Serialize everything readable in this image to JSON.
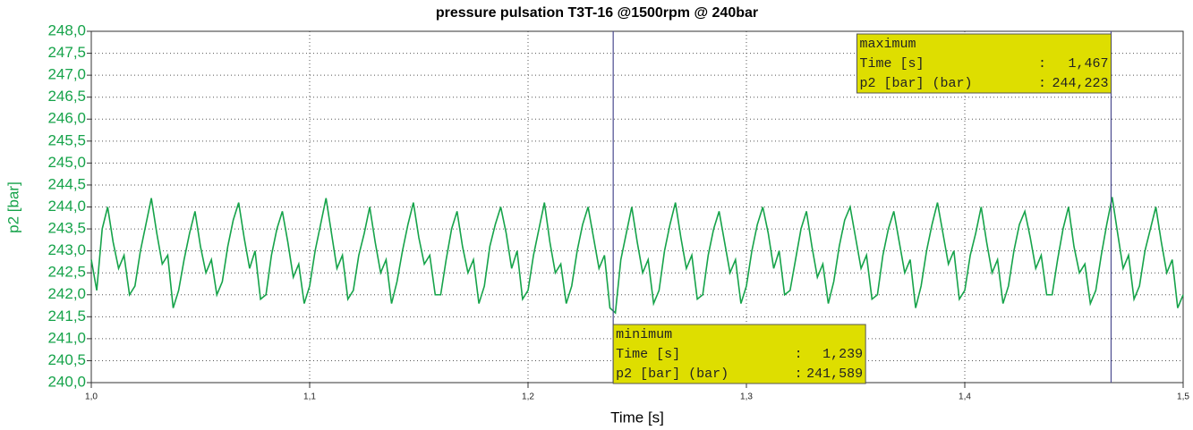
{
  "chart_data": {
    "type": "line",
    "title": "pressure pulsation T3T-16 @1500rpm @ 240bar",
    "x_label": "Time [s]",
    "y_label": "p2 [bar]",
    "grid": true,
    "xlim": [
      1,
      1.5
    ],
    "ylim": [
      240,
      248
    ],
    "xticks": [
      {
        "value": 1,
        "label": "1,0"
      },
      {
        "value": 1.1,
        "label": "1,1"
      },
      {
        "value": 1.2,
        "label": "1,2"
      },
      {
        "value": 1.3,
        "label": "1,3"
      },
      {
        "value": 1.4,
        "label": "1,4"
      },
      {
        "value": 1.5,
        "label": "1,5"
      }
    ],
    "yticks": [
      {
        "value": 240,
        "label": "240,0"
      },
      {
        "value": 240.5,
        "label": "240,5"
      },
      {
        "value": 241,
        "label": "241,0"
      },
      {
        "value": 241.5,
        "label": "241,5"
      },
      {
        "value": 242,
        "label": "242,0"
      },
      {
        "value": 242.5,
        "label": "242,5"
      },
      {
        "value": 243,
        "label": "243,0"
      },
      {
        "value": 243.5,
        "label": "243,5"
      },
      {
        "value": 244,
        "label": "244,0"
      },
      {
        "value": 244.5,
        "label": "244,5"
      },
      {
        "value": 245,
        "label": "245,0"
      },
      {
        "value": 245.5,
        "label": "245,5"
      },
      {
        "value": 246,
        "label": "246,0"
      },
      {
        "value": 246.5,
        "label": "246,5"
      },
      {
        "value": 247,
        "label": "247,0"
      },
      {
        "value": 247.5,
        "label": "247,5"
      },
      {
        "value": 248,
        "label": "248,0"
      }
    ],
    "x": [
      1,
      1.0025,
      1.005,
      1.0075,
      1.01,
      1.0125,
      1.015,
      1.0175,
      1.02,
      1.0225,
      1.025,
      1.0275,
      1.03,
      1.0325,
      1.035,
      1.0375,
      1.04,
      1.0425,
      1.045,
      1.0475,
      1.05,
      1.0525,
      1.055,
      1.0575,
      1.06,
      1.0625,
      1.065,
      1.0675,
      1.07,
      1.0725,
      1.075,
      1.0775,
      1.08,
      1.0825,
      1.085,
      1.0875,
      1.09,
      1.0925,
      1.095,
      1.0975,
      1.1,
      1.1025,
      1.105,
      1.1075,
      1.11,
      1.1125,
      1.115,
      1.1175,
      1.12,
      1.1225,
      1.125,
      1.1275,
      1.13,
      1.1325,
      1.135,
      1.1375,
      1.14,
      1.1425,
      1.145,
      1.1475,
      1.15,
      1.1525,
      1.155,
      1.1575,
      1.16,
      1.1625,
      1.165,
      1.1675,
      1.17,
      1.1725,
      1.175,
      1.1775,
      1.18,
      1.1825,
      1.185,
      1.1875,
      1.19,
      1.1925,
      1.195,
      1.1975,
      1.2,
      1.2025,
      1.205,
      1.2075,
      1.21,
      1.2125,
      1.215,
      1.2175,
      1.22,
      1.2225,
      1.225,
      1.2275,
      1.23,
      1.2325,
      1.235,
      1.2375,
      1.24,
      1.2425,
      1.245,
      1.2475,
      1.25,
      1.2525,
      1.255,
      1.2575,
      1.26,
      1.2625,
      1.265,
      1.2675,
      1.27,
      1.2725,
      1.275,
      1.2775,
      1.28,
      1.2825,
      1.285,
      1.2875,
      1.29,
      1.2925,
      1.295,
      1.2975,
      1.3,
      1.3025,
      1.305,
      1.3075,
      1.31,
      1.3125,
      1.315,
      1.3175,
      1.32,
      1.3225,
      1.325,
      1.3275,
      1.33,
      1.3325,
      1.335,
      1.3375,
      1.34,
      1.3425,
      1.345,
      1.3475,
      1.35,
      1.3525,
      1.355,
      1.3575,
      1.36,
      1.3625,
      1.365,
      1.3675,
      1.37,
      1.3725,
      1.375,
      1.3775,
      1.38,
      1.3825,
      1.385,
      1.3875,
      1.39,
      1.3925,
      1.395,
      1.3975,
      1.4,
      1.4025,
      1.405,
      1.4075,
      1.41,
      1.4125,
      1.415,
      1.4175,
      1.42,
      1.4225,
      1.425,
      1.4275,
      1.43,
      1.4325,
      1.435,
      1.4375,
      1.44,
      1.4425,
      1.445,
      1.4475,
      1.45,
      1.4525,
      1.455,
      1.4575,
      1.46,
      1.4625,
      1.465,
      1.4675,
      1.47,
      1.4725,
      1.475,
      1.4775,
      1.48,
      1.4825,
      1.485,
      1.4875,
      1.49,
      1.4925,
      1.495,
      1.4975,
      1.5
    ],
    "series": [
      {
        "name": "p2 [bar]",
        "color": "#16a34a",
        "values": [
          242.8,
          242.1,
          243.5,
          244.0,
          243.2,
          242.6,
          242.9,
          242.0,
          242.2,
          243.0,
          243.6,
          244.2,
          243.4,
          242.7,
          242.9,
          241.7,
          242.1,
          242.8,
          243.4,
          243.9,
          243.1,
          242.5,
          242.8,
          242.0,
          242.3,
          243.1,
          243.7,
          244.1,
          243.3,
          242.6,
          243.0,
          241.9,
          242.0,
          242.9,
          243.5,
          243.9,
          243.2,
          242.4,
          242.7,
          241.8,
          242.2,
          243.0,
          243.6,
          244.2,
          243.4,
          242.6,
          242.9,
          241.9,
          242.1,
          242.9,
          243.4,
          244.0,
          243.2,
          242.5,
          242.8,
          241.8,
          242.3,
          243.0,
          243.6,
          244.1,
          243.3,
          242.7,
          242.9,
          242.0,
          242.0,
          242.8,
          243.5,
          243.9,
          243.1,
          242.5,
          242.8,
          241.8,
          242.2,
          243.1,
          243.6,
          244.0,
          243.4,
          242.6,
          243.0,
          241.9,
          242.1,
          242.9,
          243.5,
          244.1,
          243.2,
          242.5,
          242.7,
          241.8,
          242.2,
          243.0,
          243.6,
          244.0,
          243.3,
          242.6,
          242.9,
          241.7,
          241.589,
          242.8,
          243.4,
          244.0,
          243.2,
          242.5,
          242.8,
          241.8,
          242.1,
          243.0,
          243.6,
          244.1,
          243.3,
          242.6,
          242.9,
          241.9,
          242.0,
          242.9,
          243.5,
          243.9,
          243.2,
          242.5,
          242.8,
          241.8,
          242.2,
          243.0,
          243.6,
          244.0,
          243.4,
          242.6,
          243.0,
          242.0,
          242.1,
          242.8,
          243.5,
          243.9,
          243.1,
          242.4,
          242.7,
          241.8,
          242.3,
          243.1,
          243.7,
          244.0,
          243.3,
          242.6,
          242.9,
          241.9,
          242.0,
          242.9,
          243.5,
          243.9,
          243.2,
          242.5,
          242.8,
          241.7,
          242.2,
          243.0,
          243.6,
          244.1,
          243.4,
          242.7,
          243.0,
          241.9,
          242.1,
          242.9,
          243.4,
          244.0,
          243.2,
          242.5,
          242.8,
          241.8,
          242.2,
          243.0,
          243.6,
          243.9,
          243.3,
          242.6,
          242.9,
          242.0,
          242.0,
          242.8,
          243.5,
          244.0,
          243.1,
          242.5,
          242.7,
          241.8,
          242.1,
          242.9,
          243.6,
          244.223,
          243.4,
          242.6,
          242.9,
          241.9,
          242.2,
          243.0,
          243.5,
          244.0,
          243.2,
          242.5,
          242.8,
          241.7,
          242.0
        ]
      }
    ],
    "annotations": [
      {
        "title": "maximum",
        "separator": ":",
        "rows": [
          {
            "name": "Time [s]",
            "value": {
              "value": 1.467,
              "label": "1,467"
            }
          },
          {
            "name": "p2 [bar] (bar)",
            "value": {
              "value": 244.223,
              "label": "244,223"
            }
          }
        ]
      },
      {
        "title": "minimum",
        "separator": ":",
        "rows": [
          {
            "name": "Time [s]",
            "value": {
              "value": 1.239,
              "label": "1,239"
            }
          },
          {
            "name": "p2 [bar] (bar)",
            "value": {
              "value": 241.589,
              "label": "241,589"
            }
          }
        ]
      }
    ]
  }
}
